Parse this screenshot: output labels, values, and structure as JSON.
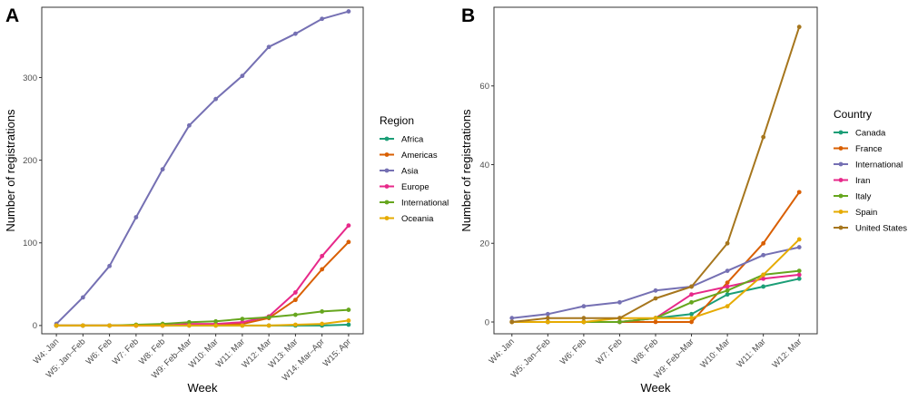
{
  "chart_data": [
    {
      "type": "line",
      "panel_label": "A",
      "xlabel": "Week",
      "ylabel": "Number of registrations",
      "ylim": [
        -10,
        385
      ],
      "yticks": [
        0,
        100,
        200,
        300
      ],
      "categories": [
        "W4: Jan",
        "W5: Jan–Feb",
        "W6: Feb",
        "W7: Feb",
        "W8: Feb",
        "W9: Feb–Mar",
        "W10: Mar",
        "W11: Mar",
        "W12: Mar",
        "W13: Mar",
        "W14: Mar–Apr",
        "W15: Apr"
      ],
      "legend": {
        "title": "Region",
        "placement": "right"
      },
      "series": [
        {
          "name": "Africa",
          "color": "#1b9e77",
          "values": [
            0,
            0,
            0,
            0,
            0,
            0,
            0,
            0,
            0,
            0,
            0,
            1
          ]
        },
        {
          "name": "Americas",
          "color": "#d95f02",
          "values": [
            0,
            0,
            0,
            0,
            0,
            1,
            1,
            2,
            9,
            31,
            68,
            101
          ]
        },
        {
          "name": "Asia",
          "color": "#7570b3",
          "values": [
            2,
            34,
            72,
            131,
            189,
            242,
            274,
            302,
            337,
            353,
            371,
            380
          ]
        },
        {
          "name": "Europe",
          "color": "#e7298a",
          "values": [
            0,
            0,
            0,
            0,
            0,
            2,
            2,
            4,
            11,
            40,
            84,
            121
          ]
        },
        {
          "name": "International",
          "color": "#66a61e",
          "values": [
            0,
            0,
            0,
            1,
            2,
            4,
            5,
            8,
            10,
            13,
            17,
            19
          ]
        },
        {
          "name": "Oceania",
          "color": "#e6ab02",
          "values": [
            0,
            0,
            0,
            0,
            0,
            0,
            0,
            0,
            0,
            1,
            2,
            6
          ]
        }
      ]
    },
    {
      "type": "line",
      "panel_label": "B",
      "xlabel": "Week",
      "ylabel": "Number of registrations",
      "ylim": [
        -3,
        80
      ],
      "yticks": [
        0,
        20,
        40,
        60
      ],
      "categories": [
        "W4: Jan",
        "W5: Jan–Feb",
        "W6: Feb",
        "W7: Feb",
        "W8: Feb",
        "W9: Feb–Mar",
        "W10: Mar",
        "W11: Mar",
        "W12: Mar"
      ],
      "legend": {
        "title": "Country",
        "placement": "right"
      },
      "series": [
        {
          "name": "Canada",
          "color": "#1b9e77",
          "values": [
            0,
            0,
            0,
            0,
            1,
            2,
            7,
            9,
            11
          ]
        },
        {
          "name": "France",
          "color": "#d95f02",
          "values": [
            0,
            0,
            0,
            0,
            0,
            0,
            10,
            20,
            33
          ]
        },
        {
          "name": "International",
          "color": "#7570b3",
          "values": [
            1,
            2,
            4,
            5,
            8,
            9,
            13,
            17,
            19
          ]
        },
        {
          "name": "Iran",
          "color": "#e7298a",
          "values": [
            0,
            0,
            0,
            0,
            1,
            7,
            9,
            11,
            12
          ]
        },
        {
          "name": "Italy",
          "color": "#66a61e",
          "values": [
            0,
            0,
            0,
            0,
            1,
            5,
            8,
            12,
            13
          ]
        },
        {
          "name": "Spain",
          "color": "#e6ab02",
          "values": [
            0,
            0,
            0,
            1,
            1,
            1,
            4,
            12,
            21
          ]
        },
        {
          "name": "United States",
          "color": "#a6761d",
          "values": [
            0,
            1,
            1,
            1,
            6,
            9,
            20,
            47,
            75
          ]
        }
      ]
    }
  ]
}
